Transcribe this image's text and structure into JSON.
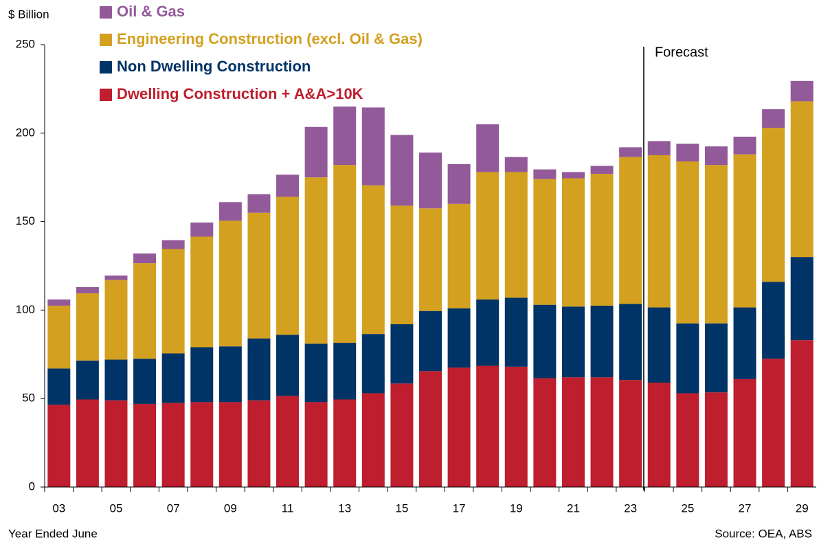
{
  "chart_data": {
    "type": "stacked_bar",
    "y_axis_label": "$ Billion",
    "x_axis_label": "Year Ended June",
    "source": "Source:  OEA, ABS",
    "annotation": "Forecast",
    "categories": [
      "03",
      null,
      "05",
      null,
      "07",
      null,
      "09",
      null,
      "11",
      null,
      "13",
      null,
      "15",
      null,
      "17",
      null,
      "19",
      null,
      "21",
      null,
      "23",
      null,
      "25",
      null,
      "27",
      null,
      "29"
    ],
    "series": [
      {
        "name": "Dwelling Construction + A&A>10K",
        "color": "#be1e2d",
        "values": [
          46.5,
          49.5,
          49,
          47,
          47.5,
          48,
          48,
          49,
          51.5,
          48,
          49.5,
          53,
          58.5,
          65.5,
          67.5,
          68.5,
          68,
          61.5,
          62,
          62,
          60.5,
          59,
          53,
          53.5,
          61,
          72.5,
          83
        ]
      },
      {
        "name": "Non Dwelling Construction",
        "color": "#003366",
        "values": [
          20.5,
          22,
          23,
          25.5,
          28,
          31,
          31.5,
          35,
          34.5,
          33,
          32,
          33.5,
          33.5,
          34,
          33.5,
          37.5,
          39,
          41.5,
          40,
          40.5,
          43,
          42.5,
          39.5,
          39,
          40.5,
          43.5,
          47
        ]
      },
      {
        "name": "Engineering Construction (excl. Oil & Gas)",
        "color": "#d4a020",
        "values": [
          35.5,
          38,
          45,
          54,
          59,
          62.5,
          71,
          71,
          78,
          94,
          100.5,
          84,
          67,
          58,
          59,
          72,
          71,
          71,
          72.5,
          74.5,
          83,
          86,
          91.5,
          89.5,
          86.5,
          87,
          88
        ]
      },
      {
        "name": "Oil & Gas",
        "color": "#935a99",
        "values": [
          3.5,
          3.5,
          2.5,
          5.5,
          5,
          8,
          10.5,
          10.5,
          12.5,
          28.5,
          33,
          44,
          40,
          31.5,
          22.5,
          27,
          8.5,
          5.5,
          3.5,
          4.5,
          5.5,
          8,
          10,
          10.5,
          10,
          10.5,
          11.5
        ]
      }
    ],
    "ylim": [
      0,
      250
    ],
    "yticks": [
      0,
      50,
      100,
      150,
      200,
      250
    ],
    "grid": false
  }
}
